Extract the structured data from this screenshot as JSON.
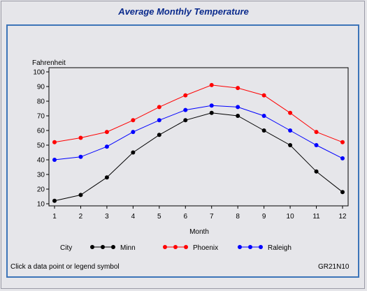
{
  "chart_data": {
    "type": "line",
    "title": "Average Monthly Temperature",
    "xlabel": "Month",
    "ylabel": "Fahrenheit",
    "x": [
      1,
      2,
      3,
      4,
      5,
      6,
      7,
      8,
      9,
      10,
      11,
      12
    ],
    "xticks": [
      "1",
      "2",
      "3",
      "4",
      "5",
      "6",
      "7",
      "8",
      "9",
      "10",
      "11",
      "12"
    ],
    "ylim": [
      10,
      100
    ],
    "yticks": [
      "10",
      "20",
      "30",
      "40",
      "50",
      "60",
      "70",
      "80",
      "90",
      "100"
    ],
    "legend_title": "City",
    "legend_position": "bottom",
    "grid": false,
    "series": [
      {
        "name": "Minn",
        "color": "#000000",
        "values": [
          12,
          16,
          28,
          45,
          57,
          67,
          72,
          70,
          60,
          50,
          32,
          18
        ]
      },
      {
        "name": "Phoenix",
        "color": "#ff0000",
        "values": [
          52,
          55,
          59,
          67,
          76,
          84,
          91,
          89,
          84,
          72,
          59,
          52
        ]
      },
      {
        "name": "Raleigh",
        "color": "#0000ff",
        "values": [
          40,
          42,
          49,
          59,
          67,
          74,
          77,
          76,
          70,
          60,
          50,
          41
        ]
      }
    ]
  },
  "footer": {
    "hint": "Click a data point or legend symbol",
    "code": "GR21N10"
  }
}
